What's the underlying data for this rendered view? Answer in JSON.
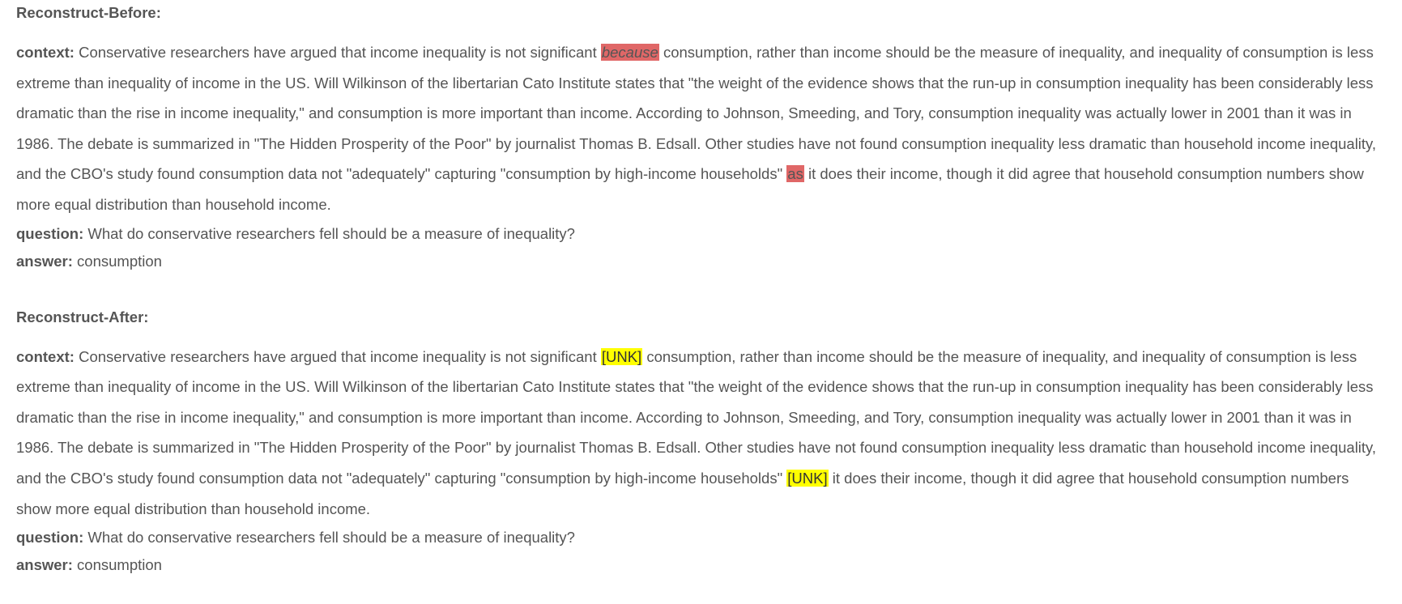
{
  "before": {
    "title": "Reconstruct-Before:",
    "context_label": "context:",
    "context_part1": " Conservative researchers have argued that income inequality is not significant ",
    "token1": "because",
    "context_part2": " consumption, rather than income should be the measure of inequality, and inequality of consumption is less extreme than inequality of income in the US. Will Wilkinson of the libertarian Cato Institute states that \"the weight of the evidence shows that the run-up in consumption inequality has been considerably less dramatic than the rise in income inequality,\" and consumption is more important than income. According to Johnson, Smeeding, and Tory, consumption inequality was actually lower in 2001 than it was in 1986. The debate is summarized in \"The Hidden Prosperity of the Poor\" by journalist Thomas B. Edsall. Other studies have not found consumption inequality less dramatic than household income inequality, and the CBO's study found consumption data not \"adequately\" capturing \"consumption by high-income households\" ",
    "token2": "as",
    "context_part3": " it does their income, though it did agree that household consumption numbers show more equal distribution than household income.",
    "question_label": "question:",
    "question": " What do conservative researchers fell should be a measure of inequality?",
    "answer_label": "answer:",
    "answer": " consumption"
  },
  "after": {
    "title": "Reconstruct-After:",
    "context_label": "context:",
    "context_part1": " Conservative researchers have argued that income inequality is not significant ",
    "token1": "[UNK]",
    "context_part2": " consumption, rather than income should be the measure of inequality, and inequality of consumption is less extreme than inequality of income in the US. Will Wilkinson of the libertarian Cato Institute states that \"the weight of the evidence shows that the run-up in consumption inequality has been considerably less dramatic than the rise in income inequality,\" and consumption is more important than income. According to Johnson, Smeeding, and Tory, consumption inequality was actually lower in 2001 than it was in 1986. The debate is summarized in \"The Hidden Prosperity of the Poor\" by journalist Thomas B. Edsall. Other studies have not found consumption inequality less dramatic than household income inequality, and the CBO's study found consumption data not \"adequately\" capturing \"consumption by high-income households\" ",
    "token2": "[UNK]",
    "context_part3": " it does their income, though it did agree that household consumption numbers show more equal distribution than household income.",
    "question_label": "question:",
    "question": " What do conservative researchers fell should be a measure of inequality?",
    "answer_label": "answer:",
    "answer": " consumption"
  },
  "colors": {
    "removed_highlight": "#e06767",
    "unk_highlight": "#ffff00",
    "text": "#555555"
  }
}
